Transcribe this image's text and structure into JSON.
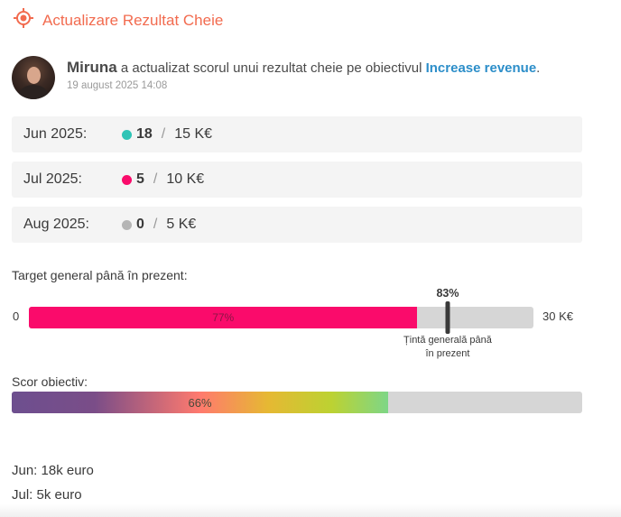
{
  "header": {
    "title": "Actualizare Rezultat Cheie",
    "icon": "target-icon",
    "accent_color": "#f26b4f"
  },
  "activity": {
    "user_name": "Miruna",
    "action_text": " a actualizat scorul unui rezultat cheie pe obiectivul ",
    "objective_name": "Increase revenue",
    "suffix": ".",
    "timestamp": "19 august 2025 14:08"
  },
  "months": [
    {
      "label": "Jun 2025:",
      "achieved": "18",
      "separator": "/",
      "target": "15",
      "unit": "K€",
      "dot_color": "#2ec4b6"
    },
    {
      "label": "Jul 2025:",
      "achieved": "5",
      "separator": "/",
      "target": "10",
      "unit": "K€",
      "dot_color": "#fa0b6b"
    },
    {
      "label": "Aug 2025:",
      "achieved": "0",
      "separator": "/",
      "target": "5",
      "unit": "K€",
      "dot_color": "#b5b5b5"
    }
  ],
  "overall_target": {
    "label": "Target general până în prezent:",
    "min_label": "0",
    "max_label": "30 K€",
    "progress_label": "77%",
    "progress_fraction": 0.77,
    "marker_label": "83%",
    "marker_fraction": 0.83,
    "marker_caption": "Țintă generală până în prezent",
    "fill_color": "#fa0b6b"
  },
  "objective_score": {
    "label": "Scor obiectiv:",
    "progress_label": "66%",
    "progress_fraction": 0.66
  },
  "notes": [
    "Jun: 18k euro",
    "Jul: 5k euro"
  ]
}
